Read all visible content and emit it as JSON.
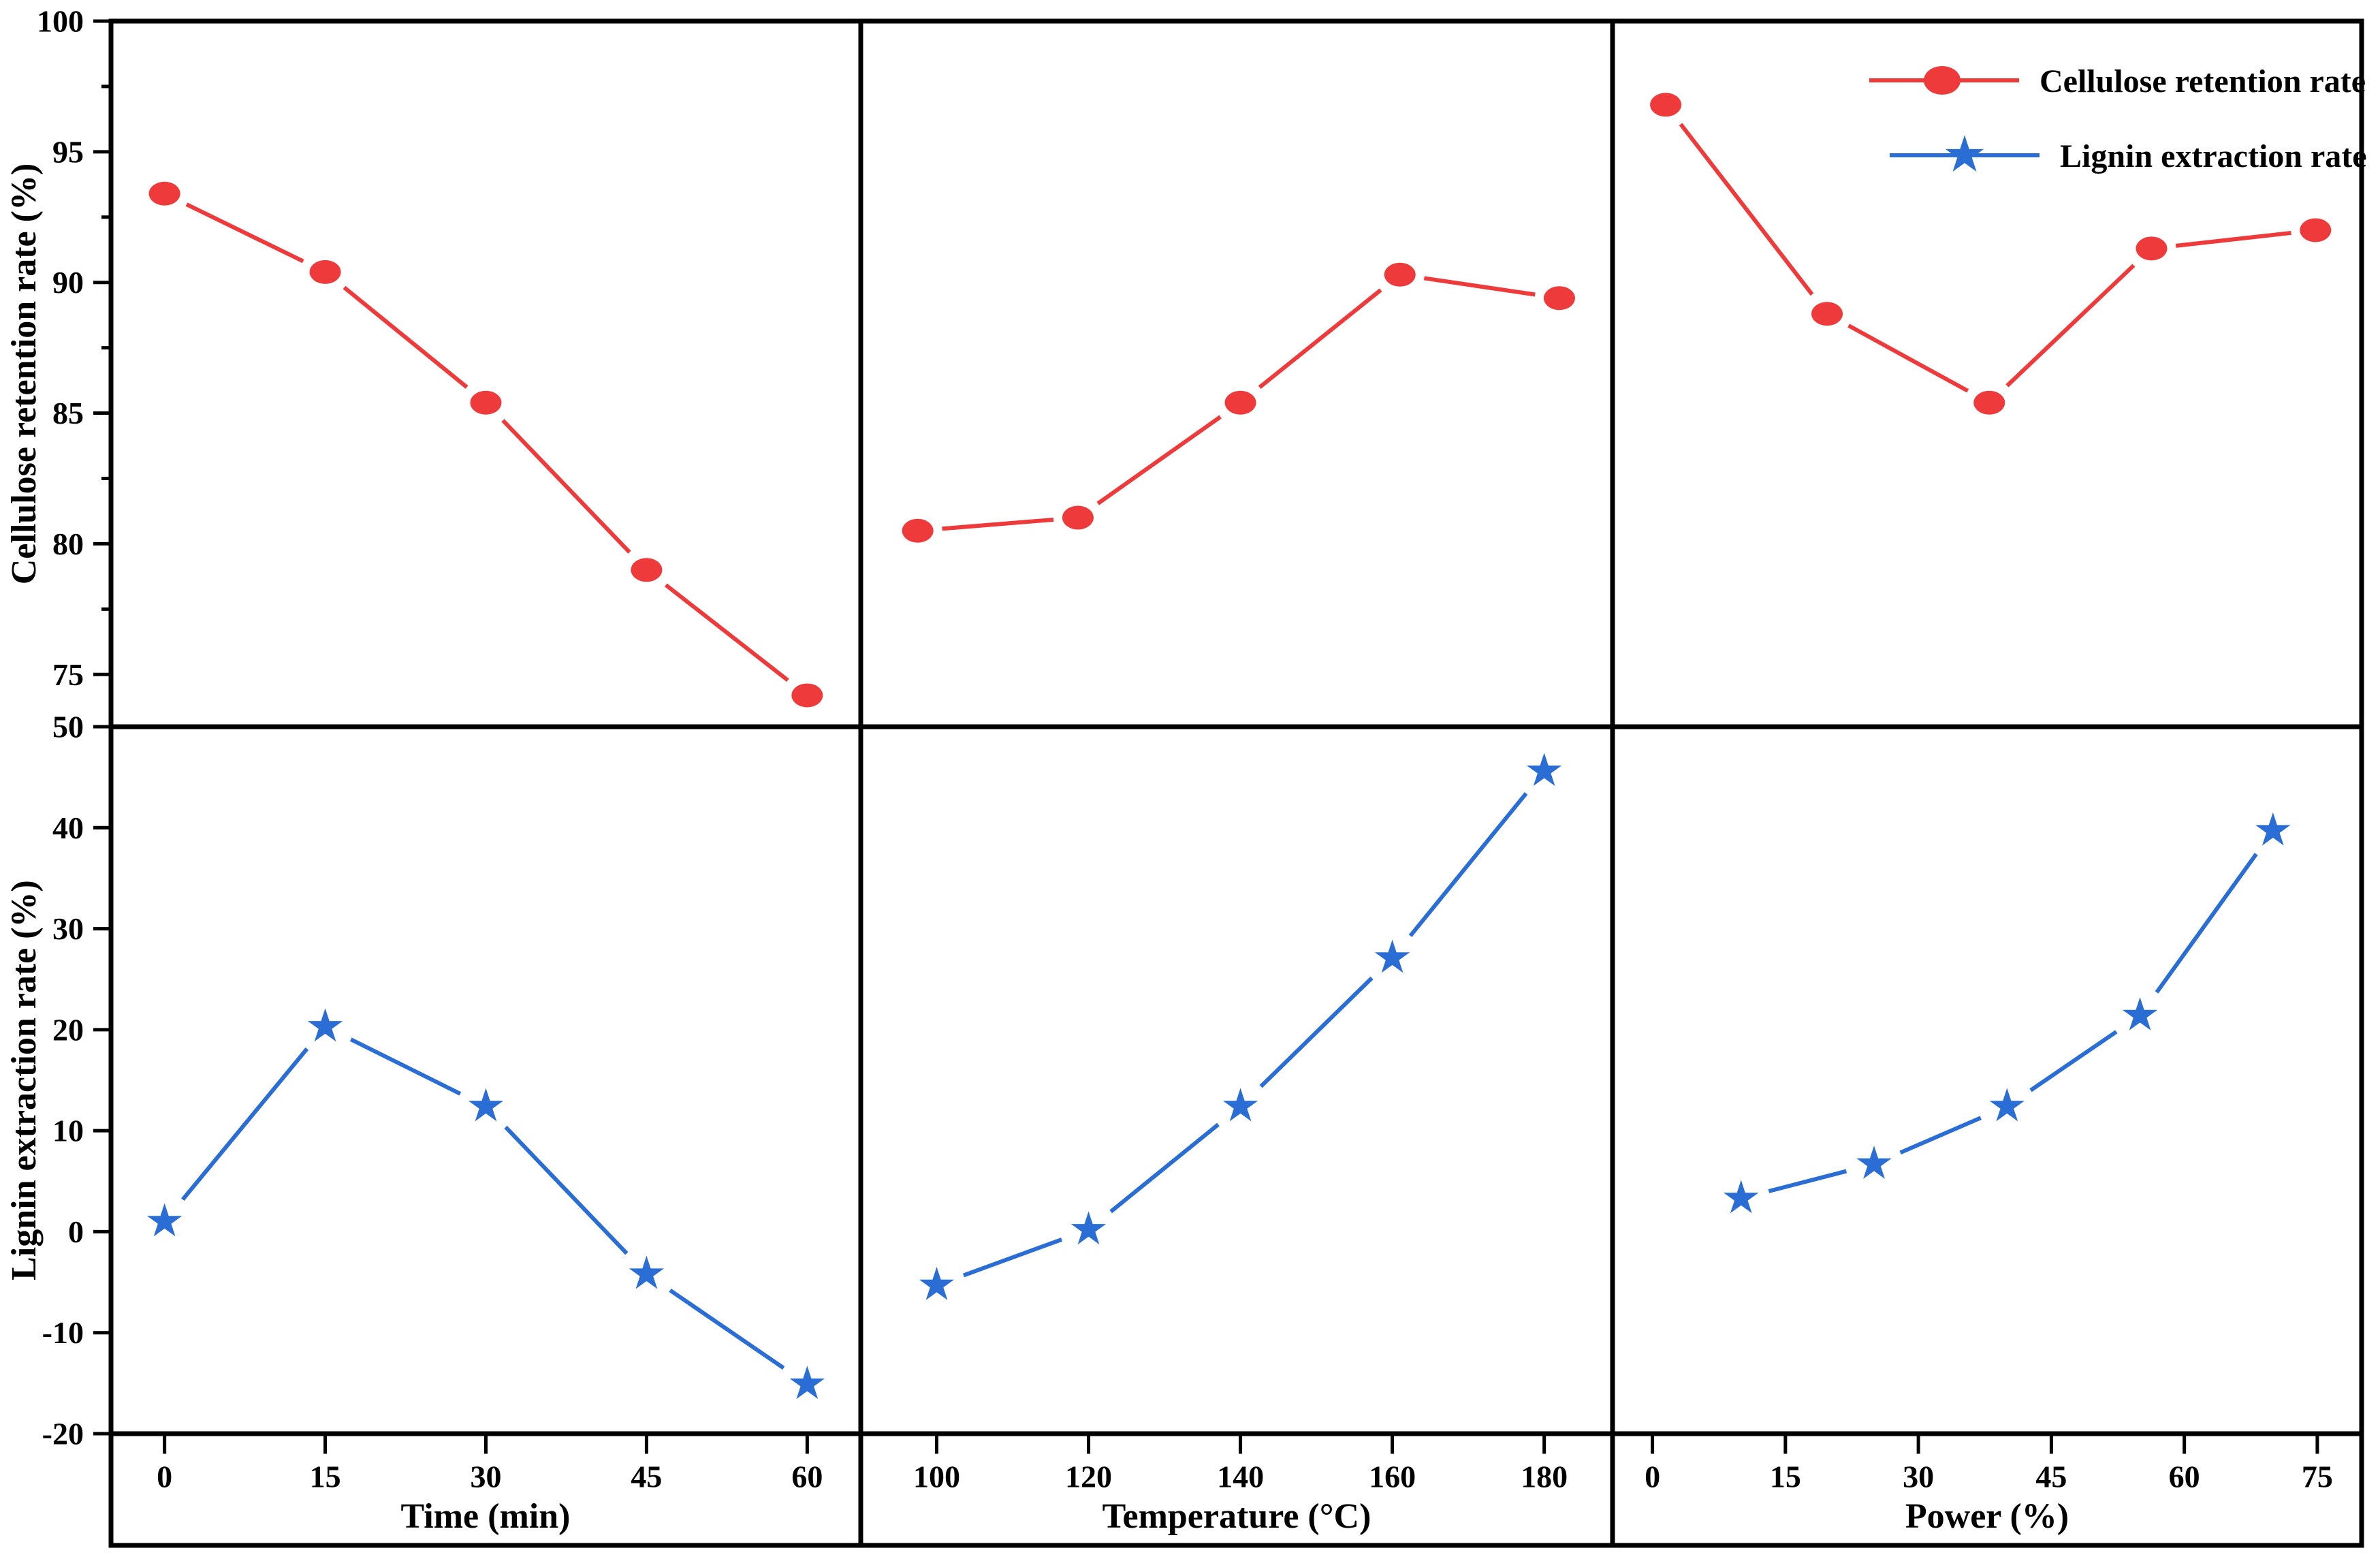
{
  "chart_data": {
    "type": "line",
    "title": "",
    "layout": "2 rows x 3 columns, shared frame, legend top-right, no gridlines",
    "colors": {
      "cellulose": "#ee3a3b",
      "lignin": "#2a6dd5",
      "axis": "#000000",
      "background": "#ffffff"
    },
    "legend": {
      "position": "top-right",
      "entries": [
        {
          "label": "Cellulose retention rate",
          "marker": "circle",
          "color": "#ee3a3b"
        },
        {
          "label": "Lignin extraction rate",
          "marker": "star",
          "color": "#2a6dd5"
        }
      ]
    },
    "rows": [
      {
        "ylabel": "Cellulose retention rate (%)",
        "ylim": [
          73,
          100
        ],
        "yticks": [
          100,
          95,
          90,
          85,
          80,
          75
        ],
        "yminorticks": [
          97.5,
          92.5,
          87.5,
          82.5,
          77.5
        ]
      },
      {
        "ylabel": "Lignin extraction rate (%)",
        "ylim": [
          -20,
          50
        ],
        "yticks": [
          50,
          40,
          30,
          20,
          10,
          0,
          -10,
          -20
        ],
        "yminorticks": []
      }
    ],
    "panels": [
      {
        "xlabel": "Time (min)",
        "xlim": [
          -5,
          65
        ],
        "xticks": [
          0,
          15,
          30,
          45,
          60
        ],
        "series": [
          {
            "name": "Cellulose retention rate",
            "row": 0,
            "x": [
              0,
              15,
              30,
              45,
              60
            ],
            "y": [
              93.4,
              90.4,
              85.4,
              79.0,
              74.2
            ]
          },
          {
            "name": "Lignin extraction rate",
            "row": 1,
            "x": [
              0,
              15,
              30,
              45,
              60
            ],
            "y": [
              1.0,
              20.3,
              12.4,
              -4.2,
              -15.1
            ]
          }
        ]
      },
      {
        "xlabel": "Temperature (°C)",
        "xlim": [
          90,
          189
        ],
        "xticks": [
          100,
          120,
          140,
          160,
          180
        ],
        "series": [
          {
            "name": "Cellulose retention rate",
            "row": 0,
            "x": [
              97.5,
              118.6,
              140,
              161,
              182
            ],
            "y": [
              80.5,
              81.0,
              85.4,
              90.3,
              89.4
            ]
          },
          {
            "name": "Lignin extraction rate",
            "row": 1,
            "x": [
              100,
              120,
              140,
              160,
              180
            ],
            "y": [
              -5.3,
              0.2,
              12.4,
              27.1,
              45.6
            ]
          }
        ]
      },
      {
        "xlabel": "Power (%)",
        "xlim": [
          -4.5,
          80
        ],
        "xticks": [
          0,
          15,
          30,
          45,
          60,
          75
        ],
        "series": [
          {
            "name": "Cellulose retention rate",
            "row": 0,
            "x": [
              1.5,
              19.7,
              38,
              56.3,
              74.8
            ],
            "y": [
              96.8,
              88.8,
              85.4,
              91.3,
              92.0
            ]
          },
          {
            "name": "Lignin extraction rate",
            "row": 1,
            "x": [
              10,
              25,
              40,
              55,
              70
            ],
            "y": [
              3.3,
              6.7,
              12.4,
              21.4,
              39.7
            ]
          }
        ]
      }
    ]
  }
}
